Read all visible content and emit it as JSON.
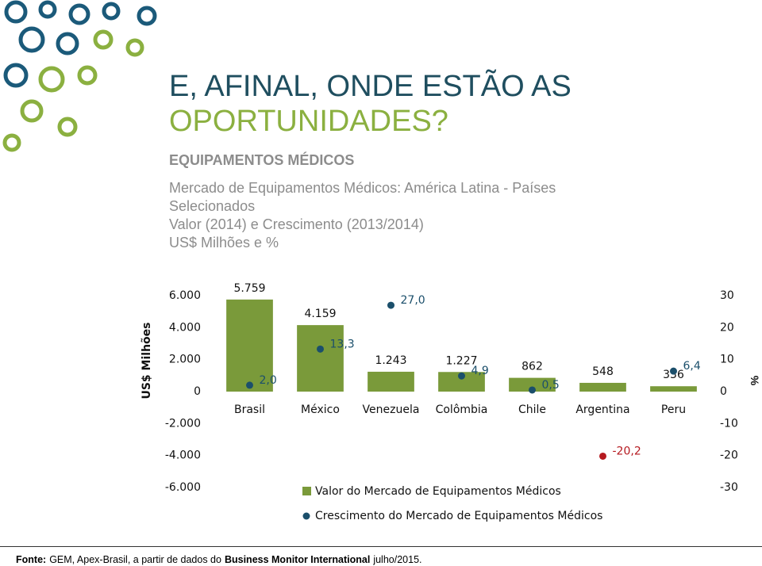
{
  "header": {
    "title_lines": [
      "E, AFINAL, ONDE ESTÃO AS",
      "OPORTUNIDADES?"
    ],
    "section": "EQUIPAMENTOS MÉDICOS",
    "subtitle_lines": [
      "Mercado de Equipamentos Médicos: América Latina - Países",
      "Selecionados",
      "Valor (2014) e Crescimento (2013/2014)",
      "US$ Milhões e %"
    ]
  },
  "chart_data": {
    "type": "bar",
    "y_label": "US$ Milhões",
    "y2_label": "%",
    "categories": [
      "Brasil",
      "México",
      "Venezuela",
      "Colômbia",
      "Chile",
      "Argentina",
      "Peru"
    ],
    "ylim": [
      -6000,
      6000
    ],
    "yticks": [
      {
        "value": 6000,
        "label": "6.000"
      },
      {
        "value": 4000,
        "label": "4.000"
      },
      {
        "value": 2000,
        "label": "2.000"
      },
      0,
      {
        "value": -2000,
        "label": "-2.000"
      },
      {
        "value": -4000,
        "label": "-4.000"
      },
      {
        "value": -6000,
        "label": "-6.000"
      }
    ],
    "y2lim": [
      -30,
      30
    ],
    "y2ticks": [
      30,
      20,
      10,
      0,
      -10,
      -20,
      -30
    ],
    "grid": false,
    "series": [
      {
        "name": "Valor do Mercado de Equipamentos Médicos",
        "type": "bar",
        "color": "#7a9a3a",
        "values": [
          5759,
          4159,
          1243,
          1227,
          862,
          548,
          336
        ],
        "value_labels": [
          "5.759",
          "4.159",
          "1.243",
          "1.227",
          "862",
          "548",
          "336"
        ]
      },
      {
        "name": "Crescimento do Mercado de Equipamentos Médicos",
        "type": "scatter",
        "axis": "y2",
        "color": "#1b4f6b",
        "colors": [
          "#1b4f6b",
          "#1b4f6b",
          "#1b4f6b",
          "#1b4f6b",
          "#1b4f6b",
          "#b5191f",
          "#1b4f6b"
        ],
        "values": [
          2.0,
          13.3,
          27.0,
          4.9,
          0.5,
          -20.2,
          6.4
        ],
        "value_labels": [
          "2,0",
          "13,3",
          "27,0",
          "4,9",
          "0,5",
          "-20,2",
          "6,4"
        ]
      }
    ]
  },
  "footer": {
    "source_parts": [
      "Fonte:",
      "GEM, Apex-Brasil, a partir de dados do",
      "Business Monitor International",
      "julho/2015."
    ]
  }
}
